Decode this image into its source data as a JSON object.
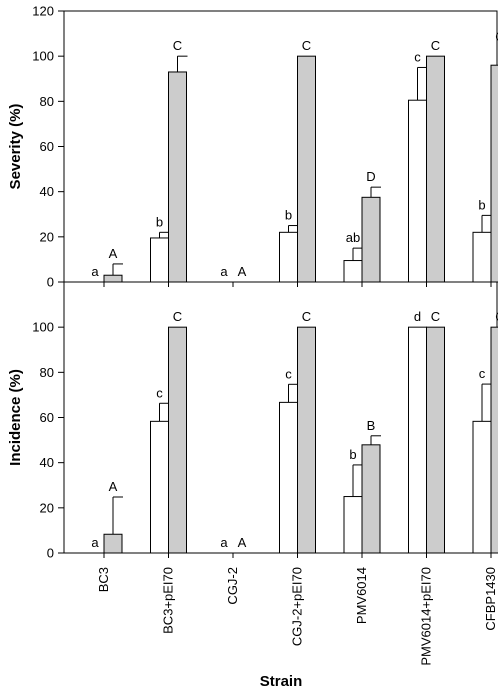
{
  "chart_data": {
    "type": "bar",
    "xlabel": "Strain",
    "categories": [
      "BC3",
      "BC3+pEI70",
      "CGJ-2",
      "CGJ-2+pEI70",
      "PMV6014",
      "PMV6014+pEI70",
      "CFBP1430"
    ],
    "colors": {
      "white_bar": "#ffffff",
      "grey_bar": "#cccccc",
      "outline": "#000000"
    },
    "panels": [
      {
        "ylabel": "Severity (%)",
        "ylim": [
          0,
          120
        ],
        "yticks": [
          0,
          20,
          40,
          60,
          80,
          100,
          120
        ],
        "series": [
          {
            "color": "#ffffff",
            "values": [
              0,
              19.5,
              0,
              22,
              9.5,
              80.5,
              22
            ],
            "errors": [
              0,
              2.5,
              0,
              3,
              5.5,
              14.5,
              7.5
            ],
            "labels": [
              "a",
              "b",
              "a",
              "b",
              "ab",
              "c",
              "b"
            ]
          },
          {
            "color": "#cccccc",
            "values": [
              3,
              93,
              0,
              100,
              37.5,
              100,
              96
            ],
            "errors": [
              5,
              7,
              0,
              0,
              4.5,
              0,
              8
            ],
            "labels": [
              "A",
              "C",
              "A",
              "C",
              "D",
              "C",
              "C"
            ]
          }
        ]
      },
      {
        "ylabel": "Incidence (%)",
        "ylim": [
          0,
          120
        ],
        "yticks": [
          0,
          20,
          40,
          60,
          80,
          100
        ],
        "series": [
          {
            "color": "#ffffff",
            "values": [
              0,
              58.3,
              0,
              66.7,
              25,
              100,
              58.3
            ],
            "errors": [
              0,
              8,
              0,
              8,
              14,
              0,
              16.5
            ],
            "labels": [
              "a",
              "c",
              "a",
              "c",
              "b",
              "d",
              "c"
            ]
          },
          {
            "color": "#cccccc",
            "values": [
              8.3,
              100,
              0,
              100,
              47.9,
              100,
              100
            ],
            "errors": [
              16.5,
              0,
              0,
              0,
              4,
              0,
              0
            ],
            "labels": [
              "A",
              "C",
              "A",
              "C",
              "B",
              "C",
              "C"
            ]
          }
        ]
      }
    ]
  }
}
